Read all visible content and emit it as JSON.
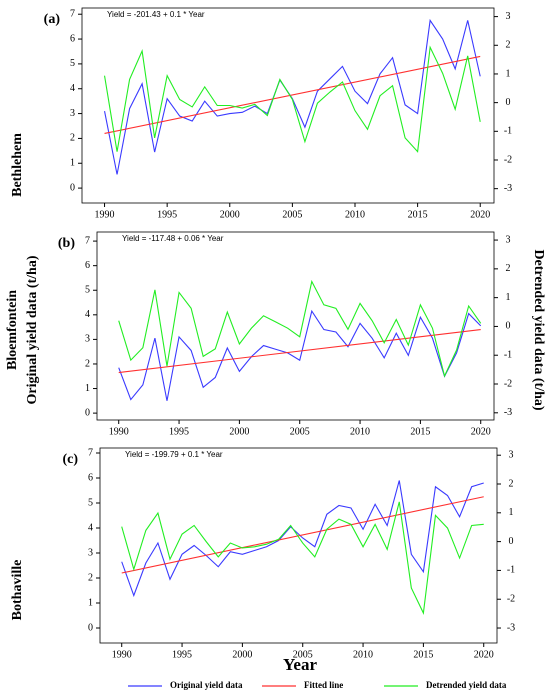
{
  "chart_data": [
    {
      "type": "line",
      "label": "(a)",
      "station": "Bethlehem",
      "annotation": "Yield = -201.43 + 0.1 * Year",
      "x": [
        1990,
        1991,
        1992,
        1993,
        1994,
        1995,
        1996,
        1997,
        1998,
        1999,
        2000,
        2001,
        2002,
        2003,
        2004,
        2005,
        2006,
        2007,
        2008,
        2009,
        2010,
        2011,
        2012,
        2013,
        2014,
        2015,
        2016,
        2017,
        2018,
        2019,
        2020
      ],
      "xlim": [
        1988.2,
        2021.1
      ],
      "xticks": [
        1990,
        1995,
        2000,
        2005,
        2010,
        2015,
        2020
      ],
      "ylim": [
        -0.6,
        7.25
      ],
      "yticks": [
        0,
        1,
        2,
        3,
        4,
        5,
        6,
        7
      ],
      "y2lim": [
        -3.5,
        3.3
      ],
      "y2ticks": [
        -3,
        -2,
        -1,
        0,
        1,
        2,
        3
      ],
      "series": [
        {
          "name": "Original yield data",
          "color": "#3a3aff",
          "values": [
            3.1,
            0.55,
            3.2,
            4.2,
            1.45,
            3.6,
            2.9,
            2.7,
            3.5,
            2.9,
            3.0,
            3.05,
            3.3,
            3.0,
            4.35,
            3.6,
            2.45,
            3.9,
            4.4,
            4.9,
            3.9,
            3.4,
            4.6,
            5.25,
            3.35,
            3.0,
            6.75,
            6.0,
            4.8,
            6.75,
            4.5
          ]
        },
        {
          "name": "Fitted line",
          "color": "#ff3030",
          "x": [
            1990,
            2020
          ],
          "values": [
            2.2,
            5.3
          ]
        },
        {
          "name": "Detrended yield data",
          "color": "#22ee22",
          "axis": "y2",
          "values": [
            0.94,
            -1.71,
            0.81,
            1.8,
            -1.23,
            0.94,
            0.11,
            -0.15,
            0.55,
            -0.1,
            -0.1,
            -0.19,
            -0.06,
            -0.45,
            0.81,
            0.11,
            -1.36,
            -0.02,
            0.37,
            0.72,
            -0.28,
            -0.93,
            0.24,
            0.59,
            -1.23,
            -1.71,
            1.93,
            1.02,
            -0.23,
            1.63,
            -0.67
          ]
        }
      ]
    },
    {
      "type": "line",
      "label": "(b)",
      "station": "Bloemfontein",
      "annotation": "Yield = -117.48 + 0.06 * Year",
      "ylabel": "Original yield data (t/ha)",
      "y2label": "Detrended yield data (t/ha)",
      "x": [
        1990,
        1991,
        1992,
        1993,
        1994,
        1995,
        1996,
        1997,
        1998,
        1999,
        2000,
        2001,
        2002,
        2003,
        2004,
        2005,
        2006,
        2007,
        2008,
        2009,
        2010,
        2011,
        2012,
        2013,
        2014,
        2015,
        2016,
        2017,
        2018,
        2019,
        2020
      ],
      "xlim": [
        1988.2,
        2021.1
      ],
      "xticks": [
        1990,
        1995,
        2000,
        2005,
        2010,
        2015,
        2020
      ],
      "ylim": [
        -0.28,
        7.37
      ],
      "yticks": [
        0,
        1,
        2,
        3,
        4,
        5,
        6,
        7
      ],
      "y2lim": [
        -3.25,
        3.28
      ],
      "y2ticks": [
        -3,
        -2,
        -1,
        0,
        1,
        2,
        3
      ],
      "series": [
        {
          "name": "Original yield data",
          "color": "#3a3aff",
          "values": [
            1.85,
            0.55,
            1.15,
            3.05,
            0.5,
            3.1,
            2.55,
            1.05,
            1.45,
            2.65,
            1.7,
            2.3,
            2.75,
            2.6,
            2.45,
            2.15,
            4.15,
            3.4,
            3.3,
            2.7,
            3.65,
            3.05,
            2.25,
            3.25,
            2.35,
            3.9,
            3.05,
            1.5,
            2.45,
            4.05,
            3.55
          ]
        },
        {
          "name": "Fitted line",
          "color": "#ff3030",
          "x": [
            1990,
            2020
          ],
          "values": [
            1.65,
            3.4
          ]
        },
        {
          "name": "Detrended yield data",
          "color": "#22ee22",
          "axis": "y2",
          "values": [
            0.2,
            -1.17,
            -0.74,
            1.27,
            -1.38,
            1.18,
            0.63,
            -1.04,
            -0.78,
            0.5,
            -0.61,
            -0.06,
            0.37,
            0.16,
            -0.06,
            -0.36,
            1.56,
            0.75,
            0.63,
            -0.1,
            0.8,
            0.2,
            -0.57,
            0.24,
            -0.65,
            0.75,
            -0.06,
            -1.72,
            -0.82,
            0.71,
            0.11
          ]
        }
      ]
    },
    {
      "type": "line",
      "label": "(c)",
      "station": "Bothaville",
      "annotation": "Yield = -199.79 + 0.1 * Year",
      "xlabel": "Year",
      "x": [
        1990,
        1991,
        1992,
        1993,
        1994,
        1995,
        1996,
        1997,
        1998,
        1999,
        2000,
        2001,
        2002,
        2003,
        2004,
        2005,
        2006,
        2007,
        2008,
        2009,
        2010,
        2011,
        2012,
        2013,
        2014,
        2015,
        2016,
        2017,
        2018,
        2019,
        2020
      ],
      "xlim": [
        1988.2,
        2021.1
      ],
      "xticks": [
        1990,
        1995,
        2000,
        2005,
        2010,
        2015,
        2020
      ],
      "ylim": [
        -0.6,
        7.2
      ],
      "yticks": [
        0,
        1,
        2,
        3,
        4,
        5,
        6,
        7
      ],
      "y2lim": [
        -3.52,
        3.25
      ],
      "y2ticks": [
        -3,
        -2,
        -1,
        0,
        1,
        2,
        3
      ],
      "series": [
        {
          "name": "Original yield data",
          "color": "#3a3aff",
          "values": [
            2.65,
            1.3,
            2.6,
            3.4,
            1.95,
            2.95,
            3.3,
            2.9,
            2.45,
            3.05,
            2.95,
            3.1,
            3.25,
            3.5,
            4.05,
            3.6,
            3.25,
            4.55,
            4.9,
            4.8,
            3.95,
            4.95,
            4.1,
            5.9,
            2.95,
            2.25,
            5.65,
            5.3,
            4.45,
            5.65,
            5.8
          ]
        },
        {
          "name": "Fitted line",
          "color": "#ff3030",
          "x": [
            1990,
            2020
          ],
          "values": [
            2.2,
            5.25
          ]
        },
        {
          "name": "Detrended yield data",
          "color": "#22ee22",
          "axis": "y2",
          "values": [
            0.52,
            -0.96,
            0.39,
            0.99,
            -0.61,
            0.26,
            0.56,
            0.0,
            -0.53,
            -0.05,
            -0.22,
            -0.18,
            -0.09,
            0.08,
            0.56,
            -0.05,
            -0.53,
            0.43,
            0.78,
            0.6,
            -0.18,
            0.6,
            -0.27,
            1.38,
            -1.61,
            -2.48,
            0.91,
            0.47,
            -0.57,
            0.56,
            0.6
          ]
        }
      ]
    }
  ]
}
